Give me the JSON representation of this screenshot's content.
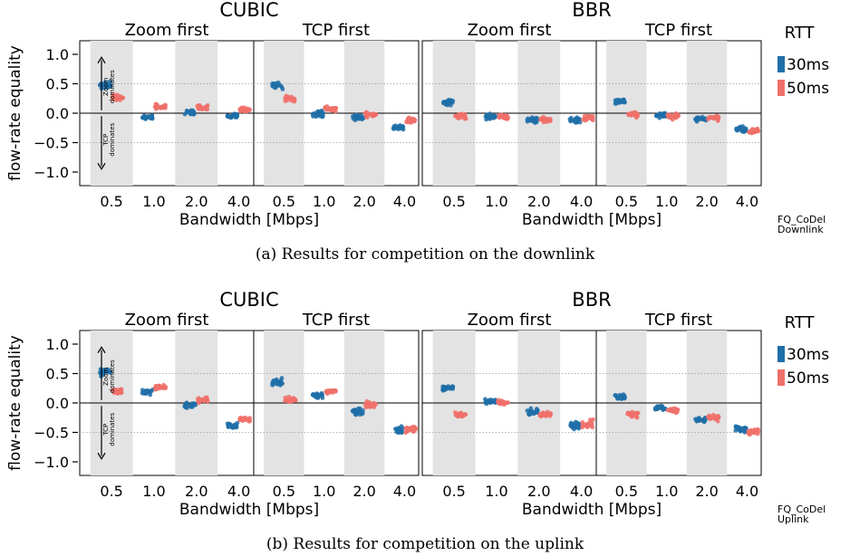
{
  "figure": {
    "queue_label": "FQ_CoDel",
    "y_axis_label": "flow-rate equality",
    "x_axis_label": "Bandwidth [Mbps]",
    "legend_title": "RTT",
    "legend_items": [
      {
        "label": "30ms",
        "color": "#1f6fa8"
      },
      {
        "label": "50ms",
        "color": "#f0706a"
      }
    ],
    "annotation_top": [
      "Zoom",
      "dominates"
    ],
    "annotation_bottom": [
      "TCP",
      "dominates"
    ]
  },
  "chart_data": [
    {
      "type": "scatter",
      "panel": "a",
      "caption": "(a) Results for competition on the downlink",
      "link_label": "Downlink",
      "ylabel": "flow-rate equality",
      "xlabel": "Bandwidth [Mbps]",
      "ylim": [
        -1.0,
        1.0
      ],
      "yticks": [
        "1.0",
        "0.5",
        "0.0",
        "−0.5",
        "−1.0"
      ],
      "categories": [
        "0.5",
        "1.0",
        "2.0",
        "4.0"
      ],
      "groups": [
        {
          "cc": "CUBIC",
          "facets": [
            {
              "title": "Zoom first",
              "series": [
                {
                  "name": "30ms",
                  "values": [
                    0.48,
                    -0.07,
                    0.02,
                    -0.05
                  ]
                },
                {
                  "name": "50ms",
                  "values": [
                    0.27,
                    0.1,
                    0.1,
                    0.06
                  ]
                }
              ]
            },
            {
              "title": "TCP first",
              "series": [
                {
                  "name": "30ms",
                  "values": [
                    0.47,
                    -0.02,
                    -0.08,
                    -0.24
                  ]
                },
                {
                  "name": "50ms",
                  "values": [
                    0.25,
                    0.07,
                    -0.03,
                    -0.12
                  ]
                }
              ]
            }
          ]
        },
        {
          "cc": "BBR",
          "facets": [
            {
              "title": "Zoom first",
              "series": [
                {
                  "name": "30ms",
                  "values": [
                    0.18,
                    -0.06,
                    -0.11,
                    -0.12
                  ]
                },
                {
                  "name": "50ms",
                  "values": [
                    -0.05,
                    -0.06,
                    -0.11,
                    -0.08
                  ]
                }
              ]
            },
            {
              "title": "TCP first",
              "series": [
                {
                  "name": "30ms",
                  "values": [
                    0.2,
                    -0.04,
                    -0.09,
                    -0.28
                  ]
                },
                {
                  "name": "50ms",
                  "values": [
                    -0.02,
                    -0.05,
                    -0.08,
                    -0.3
                  ]
                }
              ]
            }
          ]
        }
      ]
    },
    {
      "type": "scatter",
      "panel": "b",
      "caption": "(b) Results for competition on the uplink",
      "link_label": "Uplink",
      "ylabel": "flow-rate equality",
      "xlabel": "Bandwidth [Mbps]",
      "ylim": [
        -1.0,
        1.0
      ],
      "yticks": [
        "1.0",
        "0.5",
        "0.0",
        "−0.5",
        "−1.0"
      ],
      "categories": [
        "0.5",
        "1.0",
        "2.0",
        "4.0"
      ],
      "groups": [
        {
          "cc": "CUBIC",
          "facets": [
            {
              "title": "Zoom first",
              "series": [
                {
                  "name": "30ms",
                  "values": [
                    0.52,
                    0.18,
                    -0.04,
                    -0.38
                  ]
                },
                {
                  "name": "50ms",
                  "values": [
                    0.2,
                    0.27,
                    0.05,
                    -0.28
                  ]
                }
              ]
            },
            {
              "title": "TCP first",
              "series": [
                {
                  "name": "30ms",
                  "values": [
                    0.35,
                    0.13,
                    -0.15,
                    -0.46
                  ]
                },
                {
                  "name": "50ms",
                  "values": [
                    0.05,
                    0.2,
                    -0.03,
                    -0.45
                  ]
                }
              ]
            }
          ]
        },
        {
          "cc": "BBR",
          "facets": [
            {
              "title": "Zoom first",
              "series": [
                {
                  "name": "30ms",
                  "values": [
                    0.25,
                    0.03,
                    -0.15,
                    -0.38
                  ]
                },
                {
                  "name": "50ms",
                  "values": [
                    -0.2,
                    0.01,
                    -0.2,
                    -0.35
                  ]
                }
              ]
            },
            {
              "title": "TCP first",
              "series": [
                {
                  "name": "30ms",
                  "values": [
                    0.1,
                    -0.08,
                    -0.28,
                    -0.45
                  ]
                },
                {
                  "name": "50ms",
                  "values": [
                    -0.2,
                    -0.12,
                    -0.25,
                    -0.48
                  ]
                }
              ]
            }
          ]
        }
      ]
    }
  ]
}
